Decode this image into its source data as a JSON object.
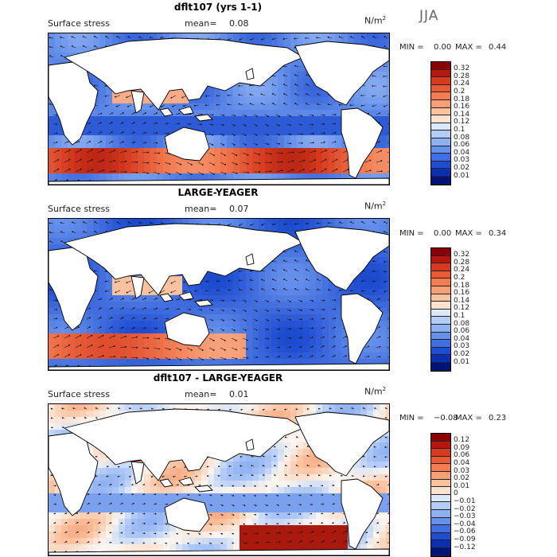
{
  "season": "JJA",
  "panels": [
    {
      "title": "dflt107 (yrs 1-1)",
      "field_label": "Surface stress",
      "mean_label": "mean=",
      "mean_value": "0.08",
      "unit_base": "N/m",
      "unit_exp": "2",
      "min_label": "MIN =",
      "min_value": "0.00",
      "max_label": "MAX =",
      "max_value": "0.44",
      "colorbar": {
        "labels": [
          "0.32",
          "0.28",
          "0.24",
          "0.2",
          "0.18",
          "0.16",
          "0.14",
          "0.12",
          "0.1",
          "0.08",
          "0.06",
          "0.04",
          "0.03",
          "0.02",
          "0.01"
        ],
        "colors": [
          "#8b0000",
          "#b5170e",
          "#d63b1f",
          "#ea5a35",
          "#f37c52",
          "#f99f75",
          "#fbc29f",
          "#fde3cf",
          "#dbe7fb",
          "#b4cdf7",
          "#8fb0f1",
          "#6691eb",
          "#3f6fe0",
          "#1f4dd1",
          "#0a2fb0",
          "#00137a"
        ]
      }
    },
    {
      "title": "LARGE-YEAGER",
      "field_label": "Surface stress",
      "mean_label": "mean=",
      "mean_value": "0.07",
      "unit_base": "N/m",
      "unit_exp": "2",
      "min_label": "MIN =",
      "min_value": "0.00",
      "max_label": "MAX =",
      "max_value": "0.34",
      "colorbar": {
        "labels": [
          "0.32",
          "0.28",
          "0.24",
          "0.2",
          "0.18",
          "0.16",
          "0.14",
          "0.12",
          "0.1",
          "0.08",
          "0.06",
          "0.04",
          "0.03",
          "0.02",
          "0.01"
        ],
        "colors": [
          "#8b0000",
          "#b5170e",
          "#d63b1f",
          "#ea5a35",
          "#f37c52",
          "#f99f75",
          "#fbc29f",
          "#fde3cf",
          "#dbe7fb",
          "#b4cdf7",
          "#8fb0f1",
          "#6691eb",
          "#3f6fe0",
          "#1f4dd1",
          "#0a2fb0",
          "#00137a"
        ]
      }
    },
    {
      "title": "dflt107 - LARGE-YEAGER",
      "field_label": "Surface stress",
      "mean_label": "mean=",
      "mean_value": "0.01",
      "unit_base": "N/m",
      "unit_exp": "2",
      "min_label": "MIN =",
      "min_value": "−0.08",
      "max_label": "MAX =",
      "max_value": "0.23",
      "colorbar": {
        "labels": [
          "0.12",
          "0.09",
          "0.06",
          "0.04",
          "0.03",
          "0.02",
          "0.01",
          "0",
          "−0.01",
          "−0.02",
          "−0.03",
          "−0.04",
          "−0.06",
          "−0.09",
          "−0.12"
        ],
        "colors": [
          "#8b0000",
          "#b5170e",
          "#d63b1f",
          "#ea5a35",
          "#f37c52",
          "#f99f75",
          "#fbc29f",
          "#fde3cf",
          "#dbe7fb",
          "#b4cdf7",
          "#8fb0f1",
          "#6691eb",
          "#3f6fe0",
          "#1f4dd1",
          "#0a2fb0",
          "#00137a"
        ]
      }
    }
  ]
}
